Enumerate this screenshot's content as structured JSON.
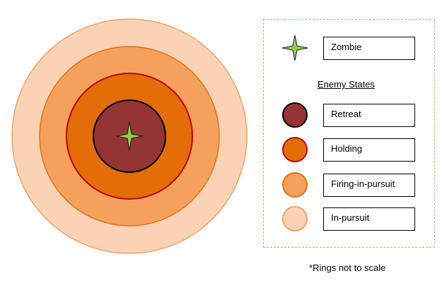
{
  "diagram": {
    "rings": [
      {
        "state": "In-pursuit",
        "fill": "#fad3b7",
        "stroke": "#f4a063"
      },
      {
        "state": "Firing-in-pursuit",
        "fill": "#f6a05d",
        "stroke": "#e27012"
      },
      {
        "state": "Holding",
        "fill": "#e36d09",
        "stroke": "#c00000"
      },
      {
        "state": "Retreat",
        "fill": "#953434",
        "stroke": "#000000"
      }
    ],
    "zombie_color": "#8fd14f"
  },
  "legend": {
    "zombie": {
      "label": "Zombie",
      "icon": "green-star-icon",
      "color": "#8fd14f"
    },
    "title": "Enemy States",
    "states": [
      {
        "label": "Retreat",
        "fill": "#953434",
        "stroke": "#000000"
      },
      {
        "label": "Holding",
        "fill": "#e36d09",
        "stroke": "#c00000"
      },
      {
        "label": "Firing-in-pursuit",
        "fill": "#f6a05d",
        "stroke": "#e27012"
      },
      {
        "label": "In-pursuit",
        "fill": "#fad3b7",
        "stroke": "#f4a063"
      }
    ]
  },
  "footnote": "*Rings not to scale"
}
